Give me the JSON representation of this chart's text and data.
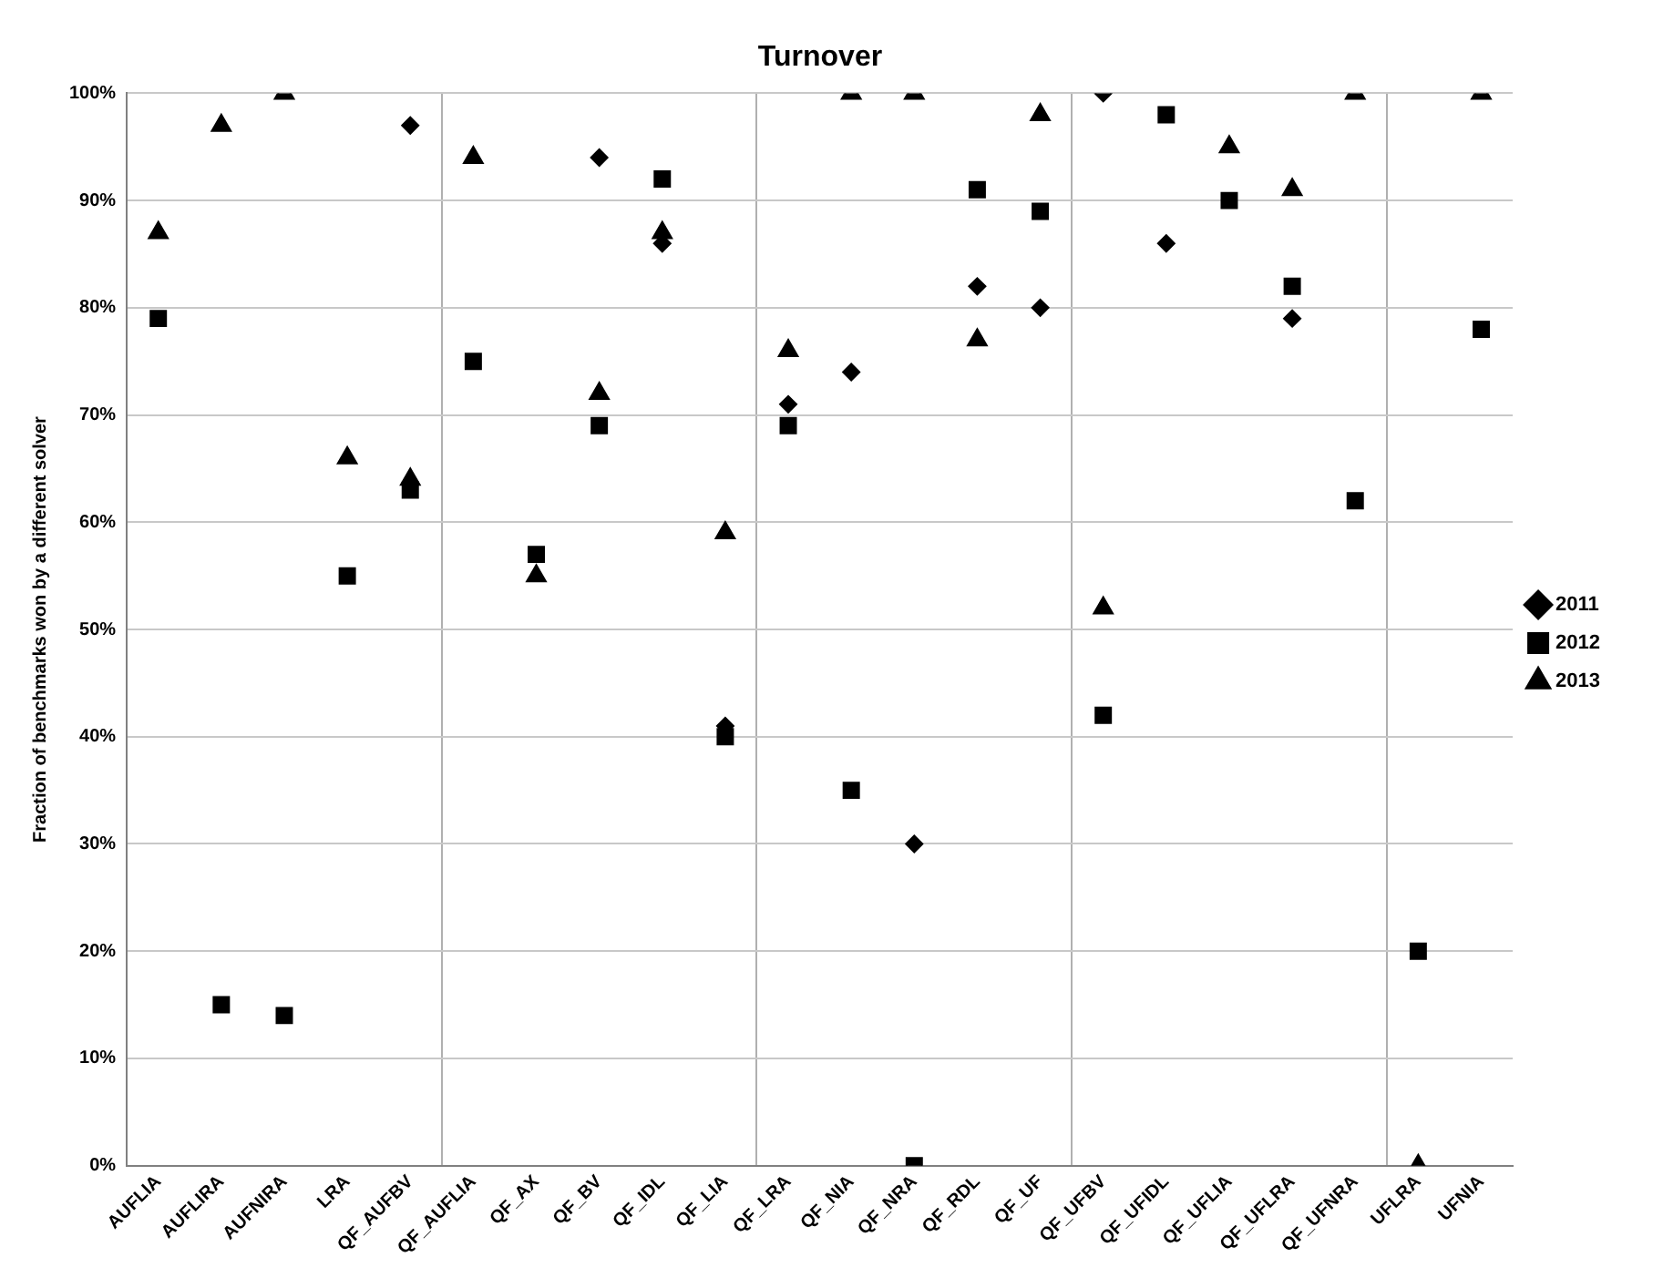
{
  "chart_data": {
    "type": "scatter",
    "title": "Turnover",
    "ylabel": "Fraction of benchmarks won by a different solver",
    "categories": [
      "AUFLIA",
      "AUFLIRA",
      "AUFNIRA",
      "LRA",
      "QF_AUFBV",
      "QF_AUFLIA",
      "QF_AX",
      "QF_BV",
      "QF_IDL",
      "QF_LIA",
      "QF_LRA",
      "QF_NIA",
      "QF_NRA",
      "QF_RDL",
      "QF_UF",
      "QF_UFBV",
      "QF_UFIDL",
      "QF_UFLIA",
      "QF_UFLRA",
      "QF_UFNRA",
      "UFLRA",
      "UFNIA"
    ],
    "series": [
      {
        "name": "2011",
        "color": "#000000",
        "marker": "diamond",
        "values": [
          null,
          null,
          null,
          null,
          97,
          null,
          null,
          94,
          86,
          41,
          71,
          74,
          30,
          82,
          80,
          100,
          86,
          null,
          79,
          null,
          null,
          null
        ]
      },
      {
        "name": "2012",
        "color": "#000000",
        "marker": "square",
        "values": [
          79,
          15,
          14,
          55,
          63,
          75,
          57,
          69,
          92,
          40,
          69,
          35,
          0,
          91,
          89,
          42,
          98,
          90,
          82,
          62,
          20,
          78
        ]
      },
      {
        "name": "2013",
        "color": "#000000",
        "marker": "triangle",
        "values": [
          87,
          97,
          100,
          66,
          64,
          94,
          55,
          72,
          87,
          59,
          76,
          100,
          100,
          77,
          98,
          52,
          null,
          95,
          91,
          100,
          0,
          100
        ]
      }
    ],
    "ylim": [
      0,
      100
    ],
    "yticks": [
      {
        "value": 0,
        "label": "0%"
      },
      {
        "value": 10,
        "label": "10%"
      },
      {
        "value": 20,
        "label": "20%"
      },
      {
        "value": 30,
        "label": "30%"
      },
      {
        "value": 40,
        "label": "40%"
      },
      {
        "value": 50,
        "label": "50%"
      },
      {
        "value": 60,
        "label": "60%"
      },
      {
        "value": 70,
        "label": "70%"
      },
      {
        "value": 80,
        "label": "80%"
      },
      {
        "value": 90,
        "label": "90%"
      },
      {
        "value": 100,
        "label": "100%"
      }
    ],
    "grid": true,
    "legend": "right"
  }
}
